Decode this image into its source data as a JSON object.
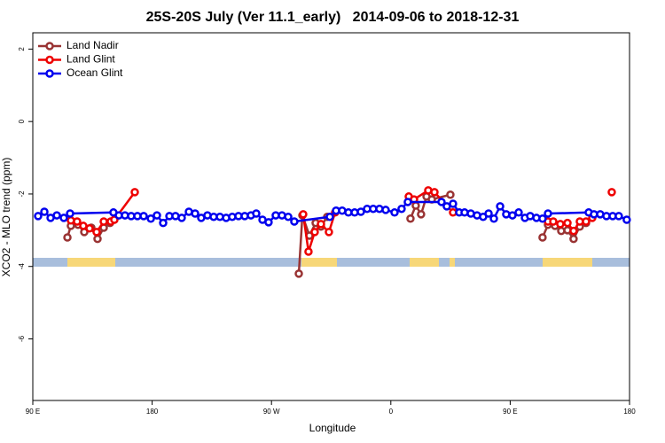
{
  "chart_data": {
    "type": "line",
    "title": "25S-20S July (Ver 11.1_early)   2014-09-06 to 2018-12-31",
    "x_label": "Longitude",
    "y_label": "XCO2 - MLO trend (ppm)",
    "xlim": [
      90,
      540
    ],
    "ylim": [
      -7.7,
      2.45
    ],
    "xticks": [
      {
        "value": 90,
        "label": "90 E"
      },
      180,
      {
        "value": 270,
        "label": "90 W"
      },
      {
        "value": 360,
        "label": "0"
      },
      {
        "value": 450,
        "label": "90 E"
      },
      {
        "value": 540,
        "label": "180"
      }
    ],
    "yticks": [
      2,
      0,
      -2,
      -4,
      -6
    ],
    "legend": "top-left",
    "series": [
      {
        "name": "Land Nadir",
        "color": "#993333",
        "x": [
          116.1,
          118.7,
          124.1,
          128.8,
          134.1,
          138.8,
          143.5,
          148.2,
          null,
          290.6,
          293.3,
          298.6,
          303.3,
          307.3,
          312.0,
          null,
          374.8,
          378.8,
          382.8,
          386.9,
          390.9,
          404.9,
          null,
          474.4,
          478.5,
          483.8,
          488.5,
          493.2,
          497.8,
          502.5,
          507.2
        ],
        "values": [
          -3.2,
          -2.88,
          -2.85,
          -3.05,
          -2.93,
          -3.24,
          -2.93,
          -2.8,
          null,
          -4.2,
          -2.59,
          -3.15,
          -2.8,
          -2.9,
          -2.63,
          null,
          -2.68,
          -2.32,
          -2.56,
          -2.07,
          -2.15,
          -2.02,
          null,
          -3.2,
          -2.85,
          -2.88,
          -3.02,
          -3.0,
          -3.24,
          -2.9,
          -2.8
        ]
      },
      {
        "name": "Land Glint",
        "color": "#ee0000",
        "x": [
          118.7,
          123.4,
          128.1,
          132.8,
          138.1,
          143.5,
          148.8,
          151.5,
          166.9,
          null,
          293.9,
          297.9,
          302.6,
          307.3,
          313.3,
          318.0,
          null,
          373.5,
          377.5,
          388.2,
          392.9,
          406.9,
          null,
          478.5,
          482.5,
          487.8,
          493.2,
          497.8,
          502.5,
          507.2,
          511.9,
          null,
          526.6
        ],
        "values": [
          -2.73,
          -2.76,
          -2.88,
          -2.95,
          -3.05,
          -2.76,
          -2.76,
          -2.71,
          -1.95,
          null,
          -2.56,
          -3.59,
          -3.05,
          -2.83,
          -3.05,
          -2.51,
          null,
          -2.07,
          -2.15,
          -1.9,
          -1.95,
          -2.51,
          null,
          -2.76,
          -2.76,
          -2.83,
          -2.8,
          -3.02,
          -2.76,
          -2.76,
          -2.66,
          null,
          -1.95
        ]
      },
      {
        "name": "Ocean Glint",
        "color": "#0000ee",
        "x": [
          94.0,
          98.7,
          103.4,
          108.1,
          113.4,
          118.1,
          150.8,
          154.9,
          159.5,
          164.2,
          168.9,
          173.6,
          179.0,
          183.6,
          188.3,
          193.0,
          197.6,
          202.3,
          207.7,
          212.4,
          217.0,
          221.7,
          226.4,
          231.1,
          235.8,
          240.4,
          245.1,
          249.8,
          254.5,
          258.5,
          263.2,
          267.8,
          273.2,
          277.9,
          282.6,
          287.2,
          314.0,
          318.7,
          323.3,
          328.0,
          332.7,
          337.4,
          342.1,
          346.7,
          351.4,
          356.1,
          362.8,
          368.1,
          372.8,
          398.2,
          402.2,
          406.9,
          411.6,
          415.6,
          420.3,
          425.0,
          429.6,
          433.7,
          437.7,
          442.4,
          447.0,
          451.7,
          456.4,
          461.1,
          465.1,
          469.8,
          474.4,
          478.5,
          509.2,
          513.2,
          517.9,
          522.6,
          527.3,
          531.9,
          537.9
        ],
        "values": [
          -2.61,
          -2.49,
          -2.66,
          -2.59,
          -2.66,
          -2.54,
          -2.51,
          -2.59,
          -2.59,
          -2.61,
          -2.61,
          -2.61,
          -2.68,
          -2.59,
          -2.8,
          -2.61,
          -2.61,
          -2.66,
          -2.49,
          -2.54,
          -2.66,
          -2.59,
          -2.63,
          -2.63,
          -2.66,
          -2.63,
          -2.61,
          -2.61,
          -2.59,
          -2.54,
          -2.71,
          -2.78,
          -2.59,
          -2.59,
          -2.63,
          -2.76,
          -2.63,
          -2.46,
          -2.46,
          -2.51,
          -2.51,
          -2.49,
          -2.41,
          -2.41,
          -2.41,
          -2.44,
          -2.51,
          -2.41,
          -2.22,
          -2.22,
          -2.34,
          -2.27,
          -2.51,
          -2.51,
          -2.54,
          -2.59,
          -2.63,
          -2.54,
          -2.68,
          -2.34,
          -2.56,
          -2.59,
          -2.51,
          -2.66,
          -2.61,
          -2.66,
          -2.68,
          -2.54,
          -2.51,
          -2.56,
          -2.56,
          -2.61,
          -2.61,
          -2.61,
          -2.71
        ]
      }
    ]
  }
}
